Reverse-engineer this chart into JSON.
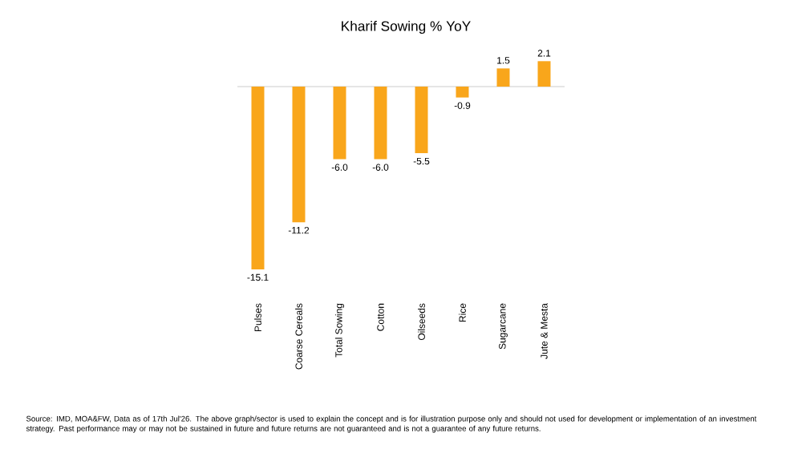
{
  "chart_data": {
    "type": "bar",
    "title": "Kharif Sowing % YoY",
    "categories": [
      "Pulses",
      "Coarse Cereals",
      "Total Sowing",
      "Cotton",
      "Oilseeds",
      "Rice",
      "Sugarcane",
      "Jute & Mesta"
    ],
    "values": [
      -15.1,
      -11.2,
      -6.0,
      -6.0,
      -5.5,
      -0.9,
      1.5,
      2.1
    ],
    "value_labels": [
      "-15.1",
      "-11.2",
      "-6.0",
      "-6.0",
      "-5.5",
      "-0.9",
      "1.5",
      "2.1"
    ],
    "color": "#f9a61b",
    "annotations": [
      "Source: IMD, MOA&FW, Data as of 17th Jul'26. The above graph/sector is used to explain the concept and is for illustration purpose only and should not used for development or implementation of an investment strategy. Past performance may or may not be sustained in future and future returns are not guaranteed and is not a guarantee of any future returns."
    ]
  }
}
